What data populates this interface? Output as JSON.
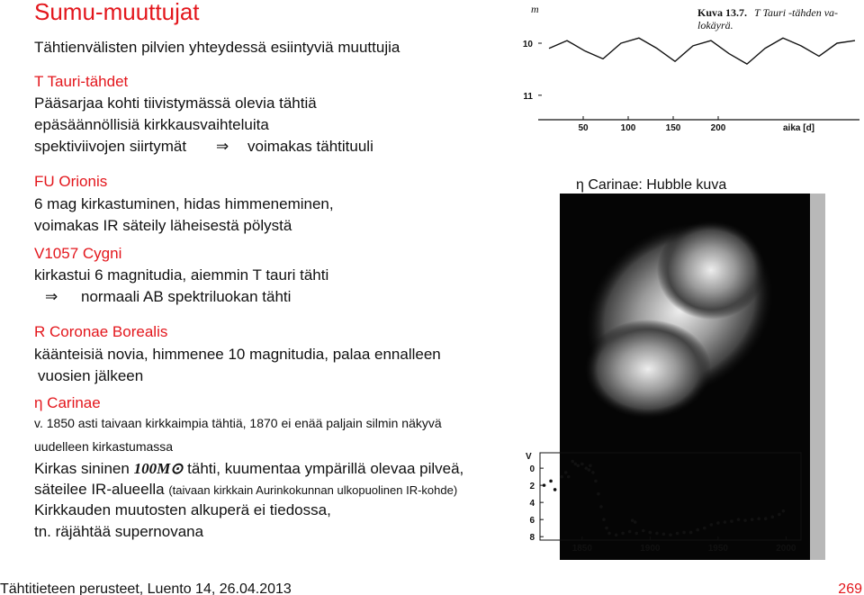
{
  "title": "Sumu-muuttujat",
  "subtitle": "Tähtienvälisten pilvien yhteydessä esiintyviä muuttujia",
  "t_tauri": {
    "heading": "T Tauri-tähdet",
    "lines": [
      "Pääsarjaa kohti tiivistymässä olevia tähtiä",
      "epäsäännöllisiä kirkkausvaihteluita"
    ],
    "implication": {
      "cause": "spektiviivojen siirtymät",
      "arrow": "⇒",
      "effect": "voimakas tähtituuli"
    }
  },
  "fu_orionis": {
    "heading": "FU Orionis",
    "lines": [
      "6 mag kirkastuminen, hidas himmeneminen,",
      "voimakas IR säteily läheisestä pölystä"
    ]
  },
  "v1057_cygni": {
    "heading": "V1057 Cygni",
    "lines": [
      "kirkastui 6 magnitudia, aiemmin T tauri tähti"
    ],
    "implication": {
      "arrow": "⇒",
      "effect": "normaali AB spektriluokan tähti"
    }
  },
  "r_coronae_borealis": {
    "heading": "R Coronae Borealis",
    "lines": [
      "käänteisiä novia, himmenee 10 magnitudia, palaa ennalleen",
      "vuosien jälkeen"
    ]
  },
  "eta_carinae": {
    "heading": "η Carinae",
    "small_lines": [
      "v. 1850 asti taivaan kirkkaimpia tähtiä, 1870 ei enää paljain silmin näkyvä",
      "uudelleen kirkastumassa"
    ],
    "line1": [
      "Kirkas sininen",
      "100M⊙",
      "tähti, kuumentaa ympärillä olevaa pilveä,"
    ],
    "line2": [
      "säteilee IR-alueella",
      "(taivaan kirkkain Aurinkokunnan ulkopuolinen IR-kohde)"
    ],
    "line3": "Kirkkauden muutosten alkuperä ei tiedossa,",
    "line4": "tn. räjähtää supernovana"
  },
  "figure_t_tauri": {
    "type": "line",
    "caption_label": "Kuva 13.7.",
    "caption_lines": [
      "T Tauri -tähden va-",
      "lokäyrä."
    ],
    "ylabel": "m",
    "xlabel": "aika [d]",
    "xlim": [
      0,
      357
    ],
    "ylim": [
      9.17,
      11.47
    ],
    "inverted_y": true,
    "xticks": [
      50,
      100,
      150,
      200
    ],
    "yticks": [
      10,
      11
    ],
    "x": [
      12,
      32,
      52,
      72,
      92,
      112,
      132,
      152,
      172,
      192,
      212,
      232,
      252,
      272,
      292,
      312,
      332,
      352
    ],
    "values": [
      10.1,
      9.95,
      10.15,
      10.3,
      10.0,
      9.9,
      10.1,
      10.35,
      10.05,
      9.95,
      10.2,
      10.4,
      10.1,
      9.9,
      10.05,
      10.25,
      10.0,
      9.95
    ]
  },
  "hubble_caption": "η Carinae: Hubble kuva",
  "figure_eta_carinae": {
    "type": "scatter",
    "ylabel": "V",
    "xlim": [
      1819,
      2011
    ],
    "ylim": [
      -1.8,
      8.4
    ],
    "inverted_y": true,
    "xticks": [
      1850,
      1900,
      1950,
      2000
    ],
    "yticks": [
      0,
      2,
      4,
      6,
      8
    ],
    "x": [
      1822,
      1827,
      1830,
      1835,
      1838,
      1840,
      1843,
      1845,
      1847,
      1850,
      1853,
      1855,
      1856,
      1858,
      1860,
      1862,
      1864,
      1866,
      1868,
      1870,
      1875,
      1880,
      1885,
      1887,
      1889,
      1890,
      1895,
      1900,
      1905,
      1910,
      1915,
      1920,
      1925,
      1930,
      1935,
      1940,
      1945,
      1950,
      1955,
      1960,
      1965,
      1970,
      1975,
      1980,
      1985,
      1990,
      1995,
      1998
    ],
    "values": [
      2,
      1.5,
      2.5,
      1,
      0.5,
      1,
      -0.8,
      -0.5,
      -0.3,
      -0.5,
      0,
      0.2,
      -0.3,
      0.5,
      1.5,
      3,
      4.5,
      6,
      7,
      7.6,
      7.8,
      7.6,
      7.4,
      6.1,
      6.3,
      7.6,
      7.3,
      7.5,
      7.6,
      7.7,
      7.8,
      7.6,
      7.5,
      7.5,
      7.2,
      7.0,
      6.6,
      6.4,
      6.3,
      6.2,
      6.0,
      6.1,
      6.0,
      5.9,
      5.9,
      5.7,
      5.4,
      5.0
    ]
  },
  "footer": "Tähtitieteen perusteet, Luento 14, 26.04.2013",
  "page_number": 269
}
